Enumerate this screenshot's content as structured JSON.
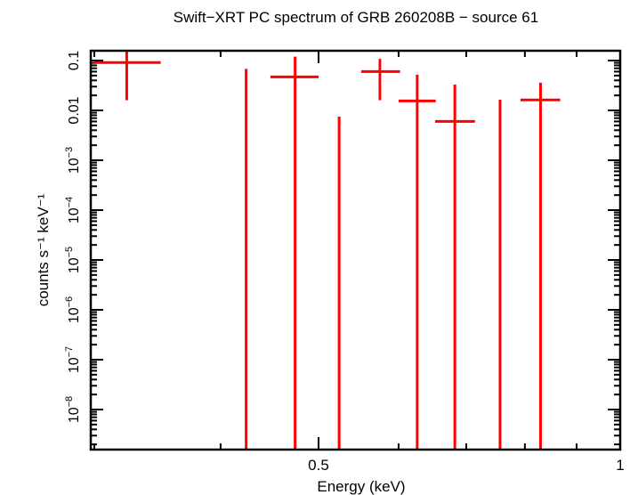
{
  "chart_data": {
    "type": "scatter",
    "title": "Swift−XRT PC spectrum of GRB 260208B − source 61",
    "xlabel": "Energy (keV)",
    "ylabel": "counts s⁻¹ keV⁻¹",
    "xscale": "log",
    "yscale": "log",
    "xlim": [
      0.3,
      1.0
    ],
    "ylim": [
      1.7e-09,
      0.17
    ],
    "grid": false,
    "color": "#ff0000",
    "x_tick_labels": [
      {
        "value": 0.5,
        "label": "0.5"
      },
      {
        "value": 1,
        "label": "1"
      }
    ],
    "x_minor_ticks": [
      0.3,
      0.4,
      0.6,
      0.7,
      0.8,
      0.9
    ],
    "y_tick_labels": [
      {
        "value": 0.1,
        "label": "0.1"
      },
      {
        "value": 0.01,
        "label": "0.01"
      },
      {
        "value": 0.001,
        "mant": "10",
        "exp": "−3"
      },
      {
        "value": 0.0001,
        "mant": "10",
        "exp": "−4"
      },
      {
        "value": 1e-05,
        "mant": "10",
        "exp": "−5"
      },
      {
        "value": 1e-06,
        "mant": "10",
        "exp": "−6"
      },
      {
        "value": 1e-07,
        "mant": "10",
        "exp": "−7"
      },
      {
        "value": 1e-08,
        "mant": "10",
        "exp": "−8"
      }
    ],
    "points": [
      {
        "x": 0.323,
        "x_low": 0.3,
        "x_high": 0.349,
        "y": 0.091,
        "y_low": 0.016,
        "y_high": 0.18
      },
      {
        "x": 0.424,
        "y_high": 0.068,
        "y_low": null
      },
      {
        "x": 0.474,
        "x_low": 0.448,
        "x_high": 0.5,
        "y": 0.047,
        "y_low": null,
        "y_high": 0.12
      },
      {
        "x": 0.524,
        "y_high": 0.0075,
        "y_low": null
      },
      {
        "x": 0.575,
        "x_low": 0.551,
        "x_high": 0.602,
        "y": 0.06,
        "y_low": 0.016,
        "y_high": 0.108
      },
      {
        "x": 0.626,
        "x_low": 0.6,
        "x_high": 0.653,
        "y": 0.0155,
        "y_low": null,
        "y_high": 0.052
      },
      {
        "x": 0.682,
        "x_low": 0.652,
        "x_high": 0.714,
        "y": 0.006,
        "y_low": null,
        "y_high": 0.033
      },
      {
        "x": 0.756,
        "y_high": 0.0164,
        "y_low": null
      },
      {
        "x": 0.829,
        "x_low": 0.792,
        "x_high": 0.867,
        "y": 0.0162,
        "y_low": null,
        "y_high": 0.036
      }
    ]
  }
}
